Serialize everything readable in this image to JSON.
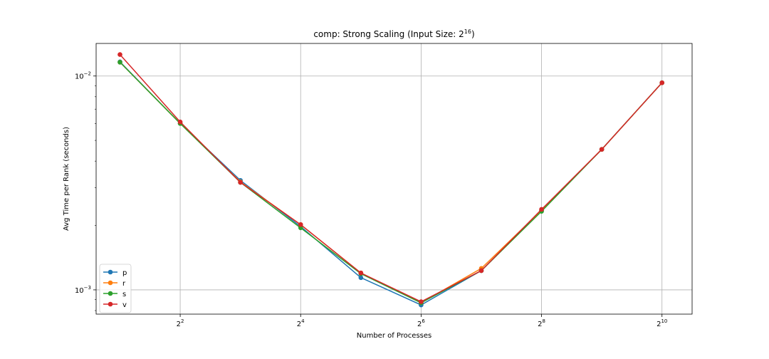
{
  "chart_data": {
    "type": "line",
    "title_main": "comp: Strong Scaling (Input Size: 2",
    "title_exp": "16",
    "title_close": ")",
    "xlabel": "Number of Processes",
    "ylabel": "Avg Time per Rank (seconds)",
    "x_scale": "log2",
    "y_scale": "log10",
    "xlim": [
      1.52,
      1448
    ],
    "ylim": [
      0.00077,
      0.0142
    ],
    "grid": true,
    "legend_position": "lower-left",
    "x": [
      2,
      4,
      8,
      16,
      32,
      64,
      128,
      256,
      512,
      1024
    ],
    "x_ticks": [
      {
        "base": "2",
        "exp": "2",
        "value": 4
      },
      {
        "base": "2",
        "exp": "4",
        "value": 16
      },
      {
        "base": "2",
        "exp": "6",
        "value": 64
      },
      {
        "base": "2",
        "exp": "8",
        "value": 256
      },
      {
        "base": "2",
        "exp": "10",
        "value": 1024
      }
    ],
    "y_ticks": [
      {
        "base": "10",
        "exp": "−2",
        "value": 0.01
      },
      {
        "base": "10",
        "exp": "−3",
        "value": 0.001
      }
    ],
    "series": [
      {
        "name": "p",
        "color": "#1f77b4",
        "values": [
          0.01165,
          0.006,
          0.00325,
          0.00198,
          0.00114,
          0.00085,
          0.00123,
          0.00235,
          0.00454,
          0.0093
        ]
      },
      {
        "name": "r",
        "color": "#ff7f0e",
        "values": [
          0.0116,
          0.006,
          0.0032,
          0.00202,
          0.0012,
          0.00087,
          0.00126,
          0.00236,
          0.00454,
          0.0093
        ]
      },
      {
        "name": "s",
        "color": "#2ca02c",
        "values": [
          0.0116,
          0.006,
          0.00318,
          0.00195,
          0.00119,
          0.00087,
          0.00123,
          0.00233,
          0.00454,
          0.0093
        ]
      },
      {
        "name": "v",
        "color": "#d62728",
        "values": [
          0.0126,
          0.0061,
          0.00318,
          0.00202,
          0.0012,
          0.00088,
          0.00123,
          0.00238,
          0.00454,
          0.0093
        ]
      }
    ]
  }
}
